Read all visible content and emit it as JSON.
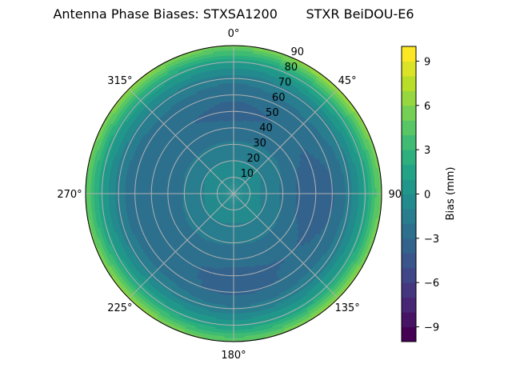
{
  "chart_data": {
    "type": "heatmap",
    "subtype": "polar-contourf",
    "title": "Antenna Phase Biases: STXSA1200       STXR BeiDOU-E6",
    "colormap": "viridis",
    "colorbar": {
      "label": "Bias (mm)",
      "range": [
        -10,
        10
      ],
      "levels_step": 1,
      "ticks": [
        -9,
        -6,
        -3,
        0,
        3,
        6,
        9
      ],
      "tick_labels": [
        "−9",
        "−6",
        "−3",
        "0",
        "3",
        "6",
        "9"
      ]
    },
    "angular_axis": {
      "zero_location": "top",
      "direction": "clockwise",
      "ticks": [
        0,
        45,
        90,
        135,
        180,
        225,
        270,
        315
      ],
      "tick_labels": [
        "0°",
        "45°",
        "90°",
        "135°",
        "180°",
        "225°",
        "270°",
        "315°"
      ]
    },
    "radial_axis": {
      "range": [
        0,
        90
      ],
      "ticks": [
        10,
        20,
        30,
        40,
        50,
        60,
        70,
        80,
        90
      ],
      "tick_labels": [
        "10",
        "20",
        "30",
        "40",
        "50",
        "60",
        "70",
        "80",
        "90"
      ]
    },
    "grid": true,
    "azimuths": [
      0,
      45,
      90,
      135,
      180,
      225,
      270,
      315
    ],
    "zeniths": [
      0,
      10,
      20,
      30,
      40,
      50,
      60,
      70,
      80,
      90
    ],
    "values": [
      [
        -0.5,
        -0.6,
        -1.0,
        -1.8,
        -2.8,
        -3.3,
        -2.8,
        -1.6,
        1.0,
        5.5
      ],
      [
        -0.5,
        -0.6,
        -1.0,
        -1.7,
        -2.6,
        -2.9,
        -2.4,
        -1.2,
        1.8,
        7.0
      ],
      [
        -0.5,
        -0.7,
        -1.2,
        -2.2,
        -3.2,
        -3.6,
        -3.1,
        -1.7,
        1.2,
        5.5
      ],
      [
        -0.5,
        -0.6,
        -1.0,
        -1.8,
        -2.7,
        -3.0,
        -2.8,
        -1.5,
        1.3,
        6.5
      ],
      [
        -0.5,
        -0.6,
        -1.1,
        -1.9,
        -2.8,
        -3.2,
        -3.3,
        -1.8,
        0.9,
        5.0
      ],
      [
        -0.5,
        -0.6,
        -1.0,
        -1.7,
        -2.6,
        -2.9,
        -2.6,
        -1.3,
        1.6,
        6.5
      ],
      [
        -0.5,
        -0.6,
        -1.1,
        -1.9,
        -2.8,
        -3.0,
        -2.7,
        -1.6,
        1.0,
        5.0
      ],
      [
        -0.5,
        -0.6,
        -1.0,
        -1.8,
        -2.7,
        -2.9,
        -2.5,
        -1.3,
        1.5,
        6.5
      ]
    ]
  }
}
